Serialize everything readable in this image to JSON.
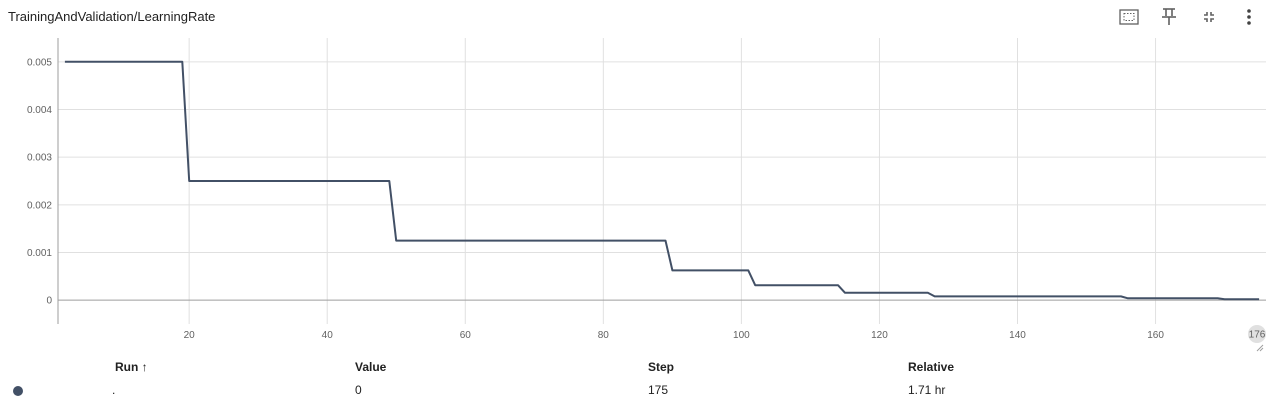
{
  "card": {
    "title": "TrainingAndValidation/LearningRate",
    "icons": [
      "fit-domain-icon",
      "pin-icon",
      "collapse-icon",
      "more-vert-icon"
    ]
  },
  "chart_data": {
    "type": "line",
    "title": "TrainingAndValidation/LearningRate",
    "xlabel": "",
    "ylabel": "",
    "xlim": [
      1,
      176
    ],
    "ylim": [
      -0.0005,
      0.0055
    ],
    "x_ticks": [
      20,
      40,
      60,
      80,
      100,
      120,
      140,
      160
    ],
    "x_tick_labels": [
      "20",
      "40",
      "60",
      "80",
      "100",
      "120",
      "140",
      "160"
    ],
    "y_ticks": [
      0,
      0.001,
      0.002,
      0.003,
      0.004,
      0.005
    ],
    "y_tick_labels": [
      "0",
      "0.001",
      "0.002",
      "0.003",
      "0.004",
      "0.005"
    ],
    "x_max_badge": "176",
    "grid": true,
    "series": [
      {
        "color": "#425066",
        "x": [
          2,
          19,
          20,
          49,
          50,
          89,
          90,
          101,
          102,
          114,
          115,
          127,
          128,
          155,
          156,
          169,
          170,
          175
        ],
        "y": [
          0.005,
          0.005,
          0.0025,
          0.0025,
          0.00125,
          0.00125,
          0.000625,
          0.000625,
          0.000313,
          0.000313,
          0.000156,
          0.000156,
          7.8e-05,
          7.8e-05,
          3.9e-05,
          3.9e-05,
          2e-05,
          2e-05
        ]
      }
    ]
  },
  "table": {
    "headers": {
      "run": "Run ↑",
      "value": "Value",
      "step": "Step",
      "relative": "Relative"
    },
    "row": {
      "run_color": "#425066",
      "run": ".",
      "value": "0",
      "step": "175",
      "relative": "1.71 hr"
    }
  }
}
